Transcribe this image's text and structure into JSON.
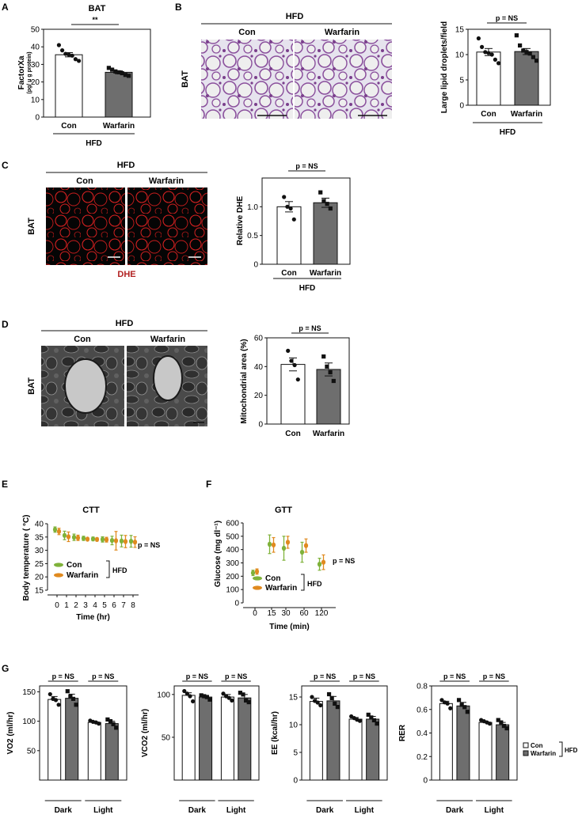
{
  "figure": {
    "panel_labels": {
      "A": "A",
      "B": "B",
      "C": "C",
      "D": "D",
      "E": "E",
      "F": "F",
      "G": "G"
    },
    "micrographs": {
      "B": {
        "group": "HFD",
        "cols": [
          "Con",
          "Warfarin"
        ],
        "row": "BAT"
      },
      "C": {
        "group": "HFD",
        "cols": [
          "Con",
          "Warfarin"
        ],
        "row": "BAT",
        "stain": "DHE"
      },
      "D": {
        "group": "HFD",
        "cols": [
          "Con",
          "Warfarin"
        ],
        "row": "BAT"
      }
    },
    "colors": {
      "con": "#ffffff",
      "warfarin": "#6e6e6e",
      "he_stain": "#8a4f9c",
      "dhe": "#d42020",
      "con_line": "#7fb23a",
      "warfarin_line": "#e08a1f",
      "dhe_label": "#b22222"
    }
  },
  "chart_data": [
    {
      "id": "A",
      "type": "bar",
      "title": "BAT",
      "ylabel": "FactorXa",
      "ylabel_sub": "(pg/ μ g protein)",
      "categories": [
        "Con",
        "Warfarin"
      ],
      "group_label": "HFD",
      "ylim": [
        0,
        50
      ],
      "yticks": [
        0,
        10,
        20,
        30,
        40,
        50
      ],
      "values": [
        35.5,
        25.5
      ],
      "errors": [
        1.2,
        0.8
      ],
      "points": [
        [
          41,
          38,
          36,
          35.5,
          35,
          33,
          32
        ],
        [
          28,
          27,
          26,
          25.5,
          25,
          24,
          23.5
        ]
      ],
      "significance": "**"
    },
    {
      "id": "B",
      "type": "bar",
      "ylabel": "Large lipid droplets/field",
      "categories": [
        "Con",
        "Warfarin"
      ],
      "group_label": "HFD",
      "ylim": [
        0,
        15
      ],
      "yticks": [
        0,
        5,
        10,
        15
      ],
      "values": [
        10.5,
        10.6
      ],
      "errors": [
        0.7,
        0.6
      ],
      "points": [
        [
          13.2,
          11.5,
          10.5,
          10.3,
          10.0,
          9.0,
          8.3
        ],
        [
          13.8,
          11.8,
          10.8,
          10.5,
          10.2,
          9.5,
          8.8
        ]
      ],
      "significance": "p = NS"
    },
    {
      "id": "C",
      "type": "bar",
      "ylabel": "Relative DHE",
      "categories": [
        "Con",
        "Warfarin"
      ],
      "group_label": "HFD",
      "ylim": [
        0,
        1.5
      ],
      "yticks": [
        "0",
        "0.5",
        "1.0"
      ],
      "ytick_values": [
        0,
        0.5,
        1.0
      ],
      "values": [
        1.0,
        1.07
      ],
      "errors": [
        0.09,
        0.08
      ],
      "points": [
        [
          1.17,
          1.0,
          0.97,
          0.78
        ],
        [
          1.25,
          1.1,
          1.05,
          0.97
        ]
      ],
      "significance": "p = NS"
    },
    {
      "id": "D",
      "type": "bar",
      "ylabel": "Mitochondrial area (%)",
      "categories": [
        "Con",
        "Warfarin"
      ],
      "ylim": [
        0,
        60
      ],
      "yticks": [
        0,
        20,
        40,
        60
      ],
      "values": [
        41.5,
        38
      ],
      "errors": [
        4.5,
        4.5
      ],
      "points": [
        [
          51,
          44,
          41,
          31
        ],
        [
          47,
          40,
          36,
          30
        ]
      ],
      "significance": "p = NS"
    },
    {
      "id": "E",
      "type": "line",
      "title": "CTT",
      "ylabel": "Body temperature ( °C)",
      "xlabel": "Time (hr)",
      "x": [
        0,
        1,
        2,
        3,
        4,
        5,
        6,
        7,
        8
      ],
      "ylim": [
        15,
        40
      ],
      "yticks": [
        15,
        20,
        25,
        30,
        35,
        40
      ],
      "series": [
        {
          "name": "Con",
          "values": [
            37.8,
            35.6,
            34.9,
            34.5,
            34.3,
            34.1,
            33.7,
            33.5,
            33.4
          ],
          "errors": [
            1.0,
            1.6,
            1.2,
            0.8,
            0.7,
            1.0,
            1.6,
            2.2,
            2.2
          ]
        },
        {
          "name": "Warfarin",
          "values": [
            37.1,
            35.1,
            34.7,
            34.2,
            34.1,
            34.0,
            33.6,
            33.3,
            33.1
          ],
          "errors": [
            1.2,
            1.8,
            1.0,
            0.6,
            0.6,
            0.9,
            3.5,
            2.3,
            2.0
          ]
        }
      ],
      "significance": "p = NS",
      "group_label": "HFD"
    },
    {
      "id": "F",
      "type": "line",
      "title": "GTT",
      "ylabel": "Glucose (mg dl⁻¹)",
      "xlabel": "Time (min)",
      "x": [
        "0",
        "15",
        "30",
        "60",
        "120"
      ],
      "ylim": [
        0,
        600
      ],
      "yticks": [
        0,
        100,
        200,
        300,
        400,
        500,
        600
      ],
      "series": [
        {
          "name": "Con",
          "values": [
            225,
            440,
            410,
            380,
            290
          ],
          "errors": [
            20,
            70,
            90,
            75,
            45
          ]
        },
        {
          "name": "Warfarin",
          "values": [
            235,
            435,
            455,
            430,
            305
          ],
          "errors": [
            20,
            55,
            45,
            50,
            55
          ]
        }
      ],
      "significance": "p = NS",
      "group_label": "HFD"
    },
    {
      "id": "G1",
      "type": "bar",
      "ylabel": "VO2  (ml/hr)",
      "categories": [
        "Dark",
        "Light"
      ],
      "ylim": [
        0,
        160
      ],
      "yticks": [
        50,
        100,
        150
      ],
      "series": [
        {
          "name": "Con",
          "values": [
            137,
            98
          ],
          "errors": [
            5,
            2
          ]
        },
        {
          "name": "Warfarin",
          "values": [
            139,
            96
          ],
          "errors": [
            7,
            4
          ]
        }
      ],
      "points": {
        "Con": [
          [
            146,
            138,
            136,
            128
          ],
          [
            101,
            99,
            98,
            96
          ]
        ],
        "Warfarin": [
          [
            151,
            142,
            138,
            128
          ],
          [
            103,
            100,
            95,
            89
          ]
        ]
      },
      "significance": [
        "p = NS",
        "p = NS"
      ]
    },
    {
      "id": "G2",
      "type": "bar",
      "ylabel": "VCO2  (ml/hr)",
      "categories": [
        "Dark",
        "Light"
      ],
      "ylim": [
        0,
        110
      ],
      "yticks": [
        50,
        100
      ],
      "series": [
        {
          "name": "Con",
          "values": [
            99,
            97
          ],
          "errors": [
            3,
            3
          ]
        },
        {
          "name": "Warfarin",
          "values": [
            97,
            96
          ],
          "errors": [
            2,
            4
          ]
        }
      ],
      "points": {
        "Con": [
          [
            104,
            101,
            98,
            92
          ],
          [
            101,
            98,
            96,
            93
          ]
        ],
        "Warfarin": [
          [
            99,
            98,
            97,
            94
          ],
          [
            102,
            100,
            93,
            91
          ]
        ]
      },
      "significance": [
        "p = NS",
        "p = NS"
      ]
    },
    {
      "id": "G3",
      "type": "bar",
      "ylabel": "EE (kcal/hr)",
      "categories": [
        "Dark",
        "Light"
      ],
      "ylim": [
        0,
        17
      ],
      "yticks": [
        0,
        5,
        10,
        15
      ],
      "series": [
        {
          "name": "Con",
          "values": [
            14.2,
            11
          ],
          "errors": [
            0.6,
            0.3
          ]
        },
        {
          "name": "Warfarin",
          "values": [
            14.3,
            11
          ],
          "errors": [
            0.8,
            0.5
          ]
        }
      ],
      "points": {
        "Con": [
          [
            15.0,
            14.3,
            14.0,
            13.5
          ],
          [
            11.5,
            11.2,
            10.9,
            10.7
          ]
        ],
        "Warfarin": [
          [
            15.5,
            14.8,
            13.8,
            13.2
          ],
          [
            11.8,
            11.3,
            10.8,
            10.2
          ]
        ]
      },
      "significance": [
        "p = NS",
        "p = NS"
      ]
    },
    {
      "id": "G4",
      "type": "bar",
      "ylabel": "RER",
      "categories": [
        "Dark",
        "Light"
      ],
      "ylim": [
        0,
        0.8
      ],
      "yticks": [
        "0",
        "0.2",
        "0.4",
        "0.6",
        "0.8"
      ],
      "ytick_values": [
        0,
        0.2,
        0.4,
        0.6,
        0.8
      ],
      "series": [
        {
          "name": "Con",
          "values": [
            0.65,
            0.49
          ],
          "errors": [
            0.02,
            0.01
          ]
        },
        {
          "name": "Warfarin",
          "values": [
            0.63,
            0.47
          ],
          "errors": [
            0.03,
            0.02
          ]
        }
      ],
      "points": {
        "Con": [
          [
            0.68,
            0.66,
            0.65,
            0.61
          ],
          [
            0.51,
            0.5,
            0.49,
            0.48
          ]
        ],
        "Warfarin": [
          [
            0.68,
            0.64,
            0.62,
            0.58
          ],
          [
            0.51,
            0.49,
            0.46,
            0.44
          ]
        ]
      },
      "significance": [
        "p = NS",
        "p = NS"
      ],
      "legend": [
        "Con",
        "Warfarin"
      ],
      "legend_group": "HFD"
    }
  ]
}
